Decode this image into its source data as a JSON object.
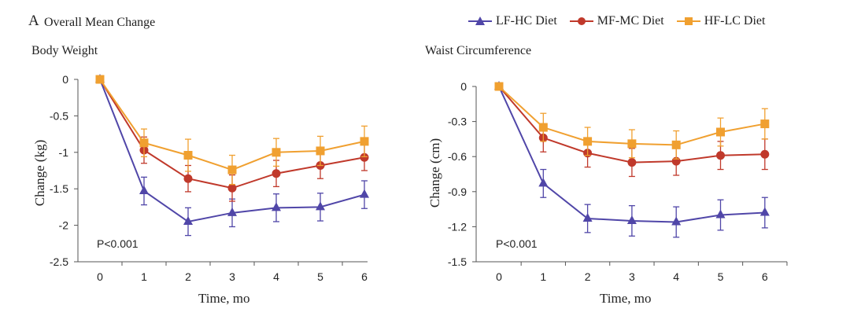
{
  "panel_letter": "A",
  "figure_title": "Overall Mean Change",
  "legend": [
    {
      "label": "LF-HC Diet",
      "color": "#5046a8",
      "marker": "triangle"
    },
    {
      "label": "MF-MC Diet",
      "color": "#c0392b",
      "marker": "circle"
    },
    {
      "label": "HF-LC Diet",
      "color": "#f0a030",
      "marker": "square"
    }
  ],
  "chart_data": [
    {
      "type": "line",
      "title": "Body Weight",
      "xlabel": "Time, mo",
      "ylabel": "Change (kg)",
      "annotation": "P<0.001",
      "x": [
        0,
        1,
        2,
        3,
        4,
        5,
        6
      ],
      "xlim": [
        0,
        6
      ],
      "ylim": [
        -2.5,
        0
      ],
      "yticks": [
        0,
        -0.5,
        -1,
        -1.5,
        -2,
        -2.5
      ],
      "ytick_labels": [
        "0",
        "-0.5",
        "-1",
        "-1.5",
        "-2",
        "-2.5"
      ],
      "series": [
        {
          "name": "LF-HC Diet",
          "color": "#5046a8",
          "marker": "triangle",
          "values": [
            0,
            -1.53,
            -1.95,
            -1.83,
            -1.76,
            -1.75,
            -1.58
          ],
          "errors": [
            0,
            0.19,
            0.19,
            0.19,
            0.19,
            0.19,
            0.19
          ]
        },
        {
          "name": "MF-MC Diet",
          "color": "#c0392b",
          "marker": "circle",
          "values": [
            0,
            -0.97,
            -1.36,
            -1.49,
            -1.29,
            -1.18,
            -1.07
          ],
          "errors": [
            0,
            0.18,
            0.18,
            0.18,
            0.18,
            0.18,
            0.18
          ]
        },
        {
          "name": "HF-LC Diet",
          "color": "#f0a030",
          "marker": "square",
          "values": [
            0,
            -0.87,
            -1.04,
            -1.24,
            -1.0,
            -0.98,
            -0.85
          ],
          "errors": [
            0,
            0.19,
            0.22,
            0.2,
            0.19,
            0.2,
            0.21
          ]
        }
      ]
    },
    {
      "type": "line",
      "title": "Waist Circumference",
      "xlabel": "Time, mo",
      "ylabel": "Change (cm)",
      "annotation": "P<0.001",
      "x": [
        0,
        1,
        2,
        3,
        4,
        5,
        6
      ],
      "xlim": [
        0,
        6
      ],
      "ylim": [
        -1.5,
        0
      ],
      "yticks": [
        0,
        -0.3,
        -0.6,
        -0.9,
        -1.2,
        -1.5
      ],
      "ytick_labels": [
        "0",
        "-0.3",
        "-0.6",
        "-0.9",
        "-1.2",
        "-1.5"
      ],
      "series": [
        {
          "name": "LF-HC Diet",
          "color": "#5046a8",
          "marker": "triangle",
          "values": [
            0,
            -0.83,
            -1.13,
            -1.15,
            -1.16,
            -1.1,
            -1.08
          ],
          "errors": [
            0,
            0.12,
            0.12,
            0.13,
            0.13,
            0.13,
            0.13
          ]
        },
        {
          "name": "MF-MC Diet",
          "color": "#c0392b",
          "marker": "circle",
          "values": [
            0,
            -0.44,
            -0.57,
            -0.65,
            -0.64,
            -0.59,
            -0.58
          ],
          "errors": [
            0,
            0.12,
            0.12,
            0.12,
            0.12,
            0.12,
            0.13
          ]
        },
        {
          "name": "HF-LC Diet",
          "color": "#f0a030",
          "marker": "square",
          "values": [
            0,
            -0.35,
            -0.47,
            -0.49,
            -0.5,
            -0.39,
            -0.32
          ],
          "errors": [
            0,
            0.12,
            0.12,
            0.12,
            0.12,
            0.12,
            0.13
          ]
        }
      ]
    }
  ]
}
